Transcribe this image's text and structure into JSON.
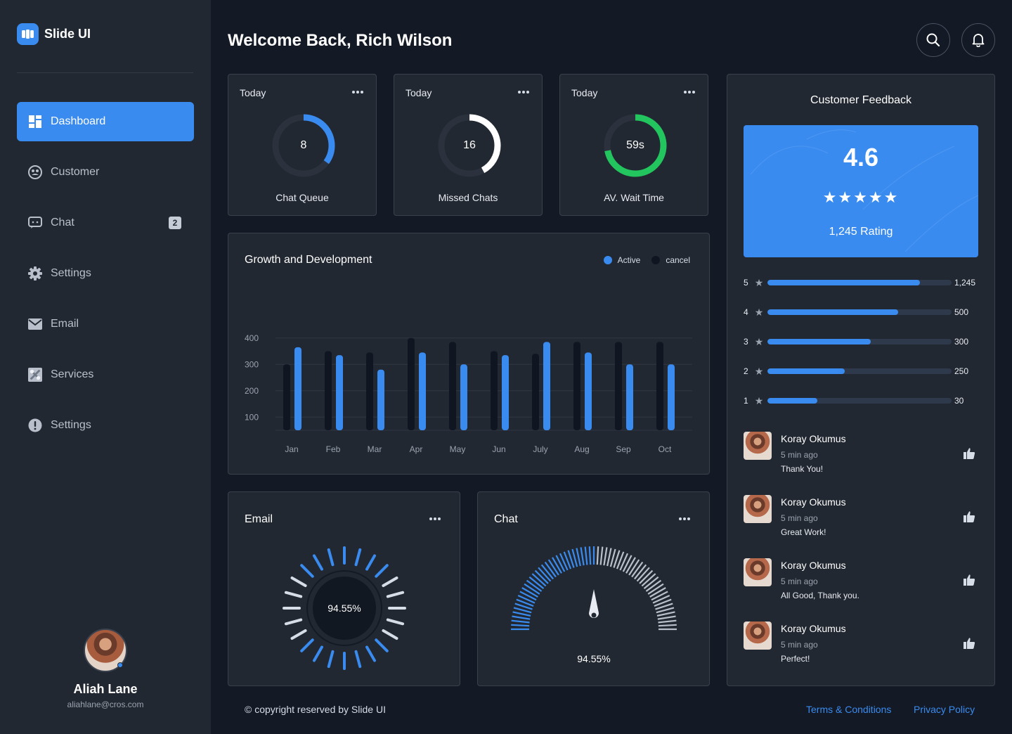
{
  "brand": {
    "name": "Slide UI"
  },
  "header": {
    "welcome": "Welcome Back, Rich Wilson"
  },
  "sidebar": {
    "items": [
      {
        "label": "Dashboard",
        "icon": "dashboard-icon",
        "active": true
      },
      {
        "label": "Customer",
        "icon": "customer-icon"
      },
      {
        "label": "Chat",
        "icon": "chat-icon",
        "badge": "2"
      },
      {
        "label": "Settings",
        "icon": "gear-icon"
      },
      {
        "label": "Email",
        "icon": "email-icon"
      },
      {
        "label": "Services",
        "icon": "services-icon"
      },
      {
        "label": "Settings",
        "icon": "alert-icon"
      }
    ]
  },
  "profile": {
    "name": "Aliah Lane",
    "email": "aliahlane@cros.com"
  },
  "stats": [
    {
      "period": "Today",
      "value": "8",
      "caption": "Chat Queue",
      "fraction": 0.35,
      "color": "#3a8bef"
    },
    {
      "period": "Today",
      "value": "16",
      "caption": "Missed Chats",
      "fraction": 0.42,
      "color": "#ffffff"
    },
    {
      "period": "Today",
      "value": "59s",
      "caption": "AV. Wait Time",
      "fraction": 0.72,
      "color": "#22c55e"
    }
  ],
  "growth": {
    "title": "Growth and Development",
    "legend": [
      {
        "label": "Active",
        "color": "#3a8bef"
      },
      {
        "label": "cancel",
        "color": "#0f1521"
      }
    ]
  },
  "chart_data": {
    "type": "bar",
    "title": "Growth and Development",
    "categories": [
      "Jan",
      "Feb",
      "Mar",
      "Apr",
      "May",
      "Jun",
      "July",
      "Aug",
      "Sep",
      "Oct"
    ],
    "series": [
      {
        "name": "cancel",
        "values": [
          300,
          350,
          345,
          400,
          385,
          350,
          340,
          385,
          385,
          385
        ]
      },
      {
        "name": "Active",
        "values": [
          365,
          335,
          280,
          345,
          300,
          335,
          385,
          345,
          300,
          300
        ]
      }
    ],
    "yticks": [
      100,
      200,
      300,
      400
    ],
    "ylim": [
      50,
      450
    ]
  },
  "email_card": {
    "title": "Email",
    "value": "94.55%",
    "fraction": 0.9455
  },
  "chat_card": {
    "title": "Chat",
    "value": "94.55%",
    "fraction": 0.9455
  },
  "feedback": {
    "title": "Customer Feedback",
    "score": "4.6",
    "stars": "★★★★★",
    "rating_count": "1,245 Rating",
    "breakdown": [
      {
        "stars": "5",
        "label": "1,245",
        "fraction": 0.83
      },
      {
        "stars": "4",
        "label": "500",
        "fraction": 0.71
      },
      {
        "stars": "3",
        "label": "300",
        "fraction": 0.56
      },
      {
        "stars": "2",
        "label": "250",
        "fraction": 0.42
      },
      {
        "stars": "1",
        "label": "30",
        "fraction": 0.27
      }
    ],
    "reviews": [
      {
        "name": "Koray Okumus",
        "time": "5 min ago",
        "text": "Thank You!"
      },
      {
        "name": "Koray Okumus",
        "time": "5 min ago",
        "text": "Great Work!"
      },
      {
        "name": "Koray Okumus",
        "time": "5 min ago",
        "text": "All Good, Thank you."
      },
      {
        "name": "Koray Okumus",
        "time": "5 min ago",
        "text": "Perfect!"
      }
    ]
  },
  "footer": {
    "copyright": "© copyright reserved by Slide UI",
    "terms": "Terms & Conditions",
    "privacy": "Privacy Policy"
  }
}
